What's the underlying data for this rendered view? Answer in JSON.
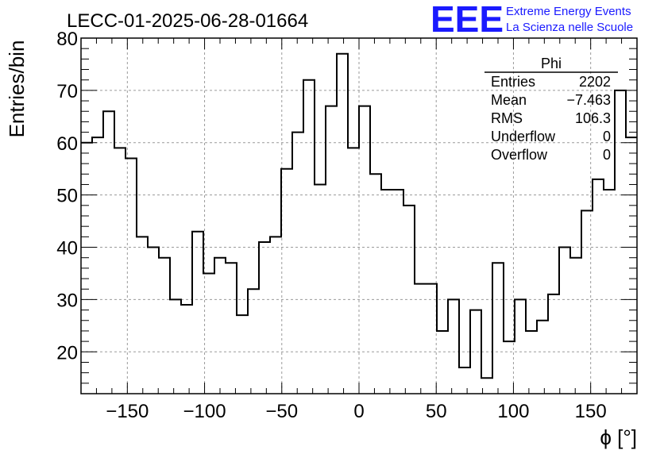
{
  "header": {
    "run_title": "LECC-01-2025-06-28-01664",
    "logo_text": "EEE",
    "logo_line1": "Extreme Energy Events",
    "logo_line2": "La Scienza nelle Scuole",
    "logo_color": "#1a1aff"
  },
  "stats_box": {
    "title": "Phi",
    "rows": [
      {
        "label": "Entries",
        "value": "2202"
      },
      {
        "label": "Mean",
        "value": "−7.463"
      },
      {
        "label": "RMS",
        "value": "106.3"
      },
      {
        "label": "Underflow",
        "value": "0"
      },
      {
        "label": "Overflow",
        "value": "0"
      }
    ]
  },
  "chart_data": {
    "type": "histogram",
    "title": "LECC-01-2025-06-28-01664",
    "xlabel": "ϕ [°]",
    "ylabel": "Entries/bin",
    "xlim": [
      -180,
      180
    ],
    "ylim": [
      12,
      80
    ],
    "grid": true,
    "bin_edges_start": -180,
    "bin_width": 7.2,
    "values": [
      60,
      61,
      66,
      59,
      57,
      42,
      40,
      38,
      30,
      29,
      43,
      35,
      38,
      37,
      27,
      32,
      41,
      42,
      55,
      62,
      72,
      52,
      67,
      77,
      59,
      67,
      54,
      51,
      51,
      48,
      33,
      33,
      24,
      30,
      17,
      28,
      15,
      37,
      22,
      30,
      24,
      26,
      31,
      40,
      38,
      47,
      53,
      51,
      70,
      61
    ],
    "x_ticks": [
      -150,
      -100,
      -50,
      0,
      50,
      100,
      150
    ],
    "x_tick_labels": [
      "−150",
      "−100",
      "−50",
      "0",
      "50",
      "100",
      "150"
    ],
    "y_ticks": [
      20,
      30,
      40,
      50,
      60,
      70,
      80
    ],
    "y_tick_labels": [
      "20",
      "30",
      "40",
      "50",
      "60",
      "70",
      "80"
    ],
    "line_color": "#000000",
    "grid_color": "#9a9a9a"
  }
}
